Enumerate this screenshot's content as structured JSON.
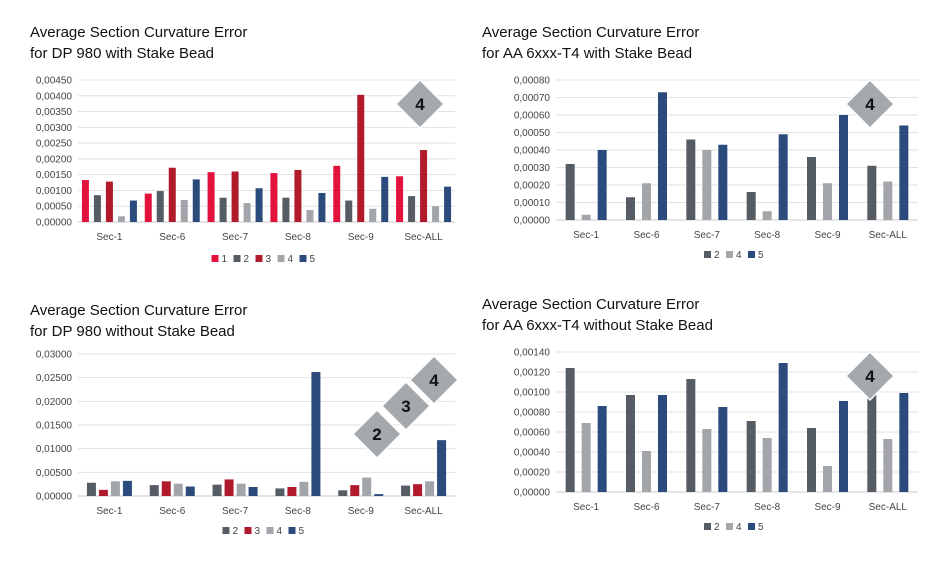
{
  "colors": {
    "1": "#e3123d",
    "2": "#565c63",
    "3": "#b11a2b",
    "4": "#a2a6aa",
    "5": "#2a4b7c",
    "grid": "#e2e2e2",
    "badge": "#a4a9ad"
  },
  "chart_data": [
    {
      "type": "bar",
      "title_line1": "Average Section Curvature Error",
      "title_line2": "for DP 980 with Stake Bead",
      "categories": [
        "Sec-1",
        "Sec-6",
        "Sec-7",
        "Sec-8",
        "Sec-9",
        "Sec-ALL"
      ],
      "series": [
        {
          "name": "1",
          "values": [
            0.00133,
            0.0009,
            0.00158,
            0.00155,
            0.00178,
            0.00145
          ]
        },
        {
          "name": "2",
          "values": [
            0.00085,
            0.00098,
            0.00077,
            0.00077,
            0.00068,
            0.00082
          ]
        },
        {
          "name": "3",
          "values": [
            0.00128,
            0.00172,
            0.0016,
            0.00165,
            0.00403,
            0.00228
          ]
        },
        {
          "name": "4",
          "values": [
            0.00018,
            0.0007,
            0.0006,
            0.00038,
            0.00042,
            0.0005
          ]
        },
        {
          "name": "5",
          "values": [
            0.00068,
            0.00135,
            0.00107,
            0.00092,
            0.00143,
            0.00112
          ]
        }
      ],
      "ylim": [
        0,
        0.0045
      ],
      "yticks": [
        "0,00000",
        "0,00050",
        "0,00100",
        "0,00150",
        "0,00200",
        "0,00250",
        "0,00300",
        "0,00350",
        "0,00400",
        "0,00450"
      ],
      "grid": true,
      "legend": "bottom",
      "badges": [
        "4"
      ]
    },
    {
      "type": "bar",
      "title_line1": "Average Section Curvature Error",
      "title_line2": "for AA 6xxx-T4 with Stake Bead",
      "categories": [
        "Sec-1",
        "Sec-6",
        "Sec-7",
        "Sec-8",
        "Sec-9",
        "Sec-ALL"
      ],
      "series": [
        {
          "name": "2",
          "values": [
            0.00032,
            0.00013,
            0.00046,
            0.00016,
            0.00036,
            0.00031
          ]
        },
        {
          "name": "4",
          "values": [
            3e-05,
            0.00021,
            0.0004,
            5e-05,
            0.00021,
            0.00022
          ]
        },
        {
          "name": "5",
          "values": [
            0.0004,
            0.00073,
            0.00043,
            0.00049,
            0.0006,
            0.00054
          ]
        }
      ],
      "ylim": [
        0,
        0.0008
      ],
      "yticks": [
        "0,00000",
        "0,00010",
        "0,00020",
        "0,00030",
        "0,00040",
        "0,00050",
        "0,00060",
        "0,00070",
        "0,00080"
      ],
      "grid": true,
      "legend": "bottom",
      "badges": [
        "4"
      ]
    },
    {
      "type": "bar",
      "title_line1": "Average Section Curvature Error",
      "title_line2": "for DP 980 without Stake Bead",
      "categories": [
        "Sec-1",
        "Sec-6",
        "Sec-7",
        "Sec-8",
        "Sec-9",
        "Sec-ALL"
      ],
      "series": [
        {
          "name": "2",
          "values": [
            0.0028,
            0.0023,
            0.0024,
            0.0016,
            0.0012,
            0.0022
          ]
        },
        {
          "name": "3",
          "values": [
            0.0013,
            0.0031,
            0.0035,
            0.0019,
            0.0023,
            0.0025
          ]
        },
        {
          "name": "4",
          "values": [
            0.0031,
            0.0026,
            0.0026,
            0.003,
            0.0039,
            0.0031
          ]
        },
        {
          "name": "5",
          "values": [
            0.0032,
            0.002,
            0.0019,
            0.0262,
            0.0004,
            0.0118
          ]
        }
      ],
      "ylim": [
        0,
        0.03
      ],
      "yticks": [
        "0,00000",
        "0,00500",
        "0,01000",
        "0,01500",
        "0,02000",
        "0,02500",
        "0,03000"
      ],
      "grid": true,
      "legend": "bottom",
      "badges": [
        "2",
        "3",
        "4"
      ]
    },
    {
      "type": "bar",
      "title_line1": "Average Section Curvature Error",
      "title_line2": "for AA 6xxx-T4 without Stake Bead",
      "categories": [
        "Sec-1",
        "Sec-6",
        "Sec-7",
        "Sec-8",
        "Sec-9",
        "Sec-ALL"
      ],
      "series": [
        {
          "name": "2",
          "values": [
            0.00124,
            0.00097,
            0.00113,
            0.00071,
            0.00064,
            0.00097
          ]
        },
        {
          "name": "4",
          "values": [
            0.00069,
            0.00041,
            0.00063,
            0.00054,
            0.00026,
            0.00053
          ]
        },
        {
          "name": "5",
          "values": [
            0.00086,
            0.00097,
            0.00085,
            0.00129,
            0.00091,
            0.00099
          ]
        }
      ],
      "ylim": [
        0,
        0.0014
      ],
      "yticks": [
        "0,00000",
        "0,00020",
        "0,00040",
        "0,00060",
        "0,00080",
        "0,00100",
        "0,00120",
        "0,00140"
      ],
      "grid": true,
      "legend": "bottom",
      "badges": [
        "4"
      ]
    }
  ]
}
